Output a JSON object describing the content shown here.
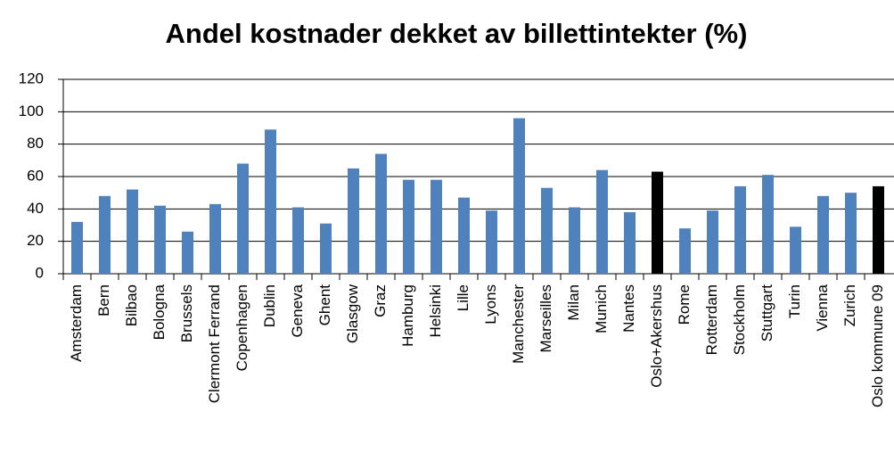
{
  "chart_data": {
    "type": "bar",
    "title": "Andel kostnader dekket av billettintekter (%)",
    "categories": [
      "Amsterdam",
      "Bern",
      "Bilbao",
      "Bologna",
      "Brussels",
      "Clermont Ferrand",
      "Copenhagen",
      "Dublin",
      "Geneva",
      "Ghent",
      "Glasgow",
      "Graz",
      "Hamburg",
      "Helsinki",
      "Lille",
      "Lyons",
      "Manchester",
      "Marseilles",
      "Milan",
      "Munich",
      "Nantes",
      "Oslo+Akershus",
      "Rome",
      "Rotterdam",
      "Stockholm",
      "Stuttgart",
      "Turin",
      "Vienna",
      "Zurich",
      "Oslo kommune 09"
    ],
    "values": [
      32,
      48,
      52,
      42,
      26,
      43,
      68,
      89,
      41,
      31,
      65,
      74,
      58,
      58,
      47,
      39,
      96,
      53,
      41,
      64,
      38,
      63,
      28,
      39,
      54,
      61,
      29,
      48,
      50,
      54
    ],
    "colors": [
      "#4f81bd",
      "#4f81bd",
      "#4f81bd",
      "#4f81bd",
      "#4f81bd",
      "#4f81bd",
      "#4f81bd",
      "#4f81bd",
      "#4f81bd",
      "#4f81bd",
      "#4f81bd",
      "#4f81bd",
      "#4f81bd",
      "#4f81bd",
      "#4f81bd",
      "#4f81bd",
      "#4f81bd",
      "#4f81bd",
      "#4f81bd",
      "#4f81bd",
      "#4f81bd",
      "#000000",
      "#4f81bd",
      "#4f81bd",
      "#4f81bd",
      "#4f81bd",
      "#4f81bd",
      "#4f81bd",
      "#4f81bd",
      "#000000"
    ],
    "ylim": [
      0,
      120
    ],
    "yticks": [
      0,
      20,
      40,
      60,
      80,
      100,
      120
    ],
    "grid": true
  }
}
